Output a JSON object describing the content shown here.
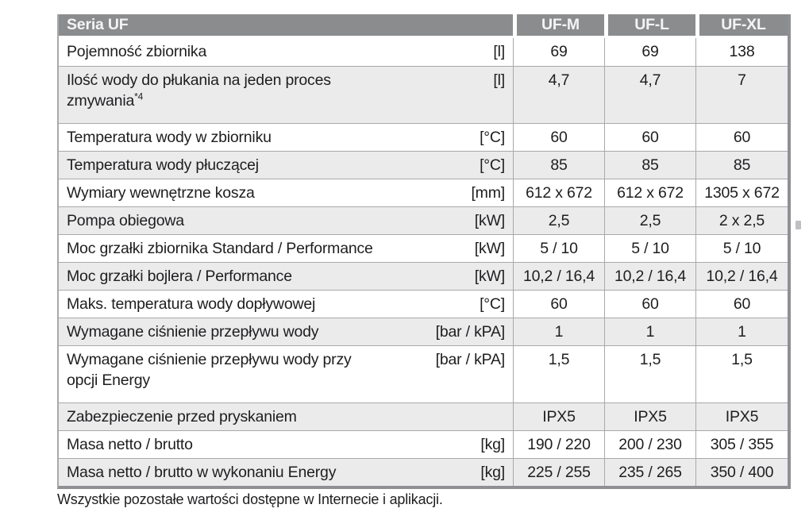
{
  "header": {
    "series_label": "Seria UF",
    "columns": [
      "UF-M",
      "UF-L",
      "UF-XL"
    ]
  },
  "rows": [
    {
      "label": "Pojemność zbiornika",
      "unit": "[l]",
      "values": [
        "69",
        "69",
        "138"
      ]
    },
    {
      "label": "Ilość wody do płukania na jeden proces\nzmywania",
      "sup": "*4",
      "unit": "[l]",
      "values": [
        "4,7",
        "4,7",
        "7"
      ],
      "tall": true
    },
    {
      "label": "Temperatura wody w zbiorniku",
      "unit": "[°C]",
      "values": [
        "60",
        "60",
        "60"
      ]
    },
    {
      "label": "Temperatura wody płuczącej",
      "unit": "[°C]",
      "values": [
        "85",
        "85",
        "85"
      ]
    },
    {
      "label": "Wymiary wewnętrzne kosza",
      "unit": "[mm]",
      "values": [
        "612 x 672",
        "612 x 672",
        "1305 x 672"
      ]
    },
    {
      "label": "Pompa obiegowa",
      "unit": "[kW]",
      "values": [
        "2,5",
        "2,5",
        "2 x 2,5"
      ]
    },
    {
      "label": "Moc grzałki zbiornika Standard / Performance",
      "unit": "[kW]",
      "values": [
        "5 / 10",
        "5 / 10",
        "5 / 10"
      ]
    },
    {
      "label": "Moc grzałki bojlera / Performance",
      "unit": "[kW]",
      "values": [
        "10,2 / 16,4",
        "10,2 / 16,4",
        "10,2 / 16,4"
      ]
    },
    {
      "label": "Maks. temperatura wody dopływowej",
      "unit": "[°C]",
      "values": [
        "60",
        "60",
        "60"
      ]
    },
    {
      "label": "Wymagane ciśnienie przepływu wody",
      "unit": "[bar / kPA]",
      "values": [
        "1",
        "1",
        "1"
      ]
    },
    {
      "label": "Wymagane ciśnienie przepływu wody przy\nopcji Energy",
      "unit": "[bar / kPA]",
      "values": [
        "1,5",
        "1,5",
        "1,5"
      ],
      "tall": true
    },
    {
      "label": "Zabezpieczenie przed pryskaniem",
      "unit": "",
      "values": [
        "IPX5",
        "IPX5",
        "IPX5"
      ]
    },
    {
      "label": "Masa netto / brutto",
      "unit": "[kg]",
      "values": [
        "190 / 220",
        "200 / 230",
        "305 / 355"
      ]
    },
    {
      "label": "Masa netto / brutto w wykonaniu Energy",
      "unit": "[kg]",
      "values": [
        "225 / 255",
        "235 / 265",
        "350 / 400"
      ]
    }
  ],
  "footnote": "Wszystkie pozostałe wartości dostępne w Internecie i aplikacji.",
  "colors": {
    "header_bg": "#8a8c8e",
    "header_text": "#f4f4f4",
    "row_alt_bg": "#ebebec",
    "border": "#a7a9ac",
    "outer_border": "#8e9093",
    "text": "#1e1e20"
  }
}
